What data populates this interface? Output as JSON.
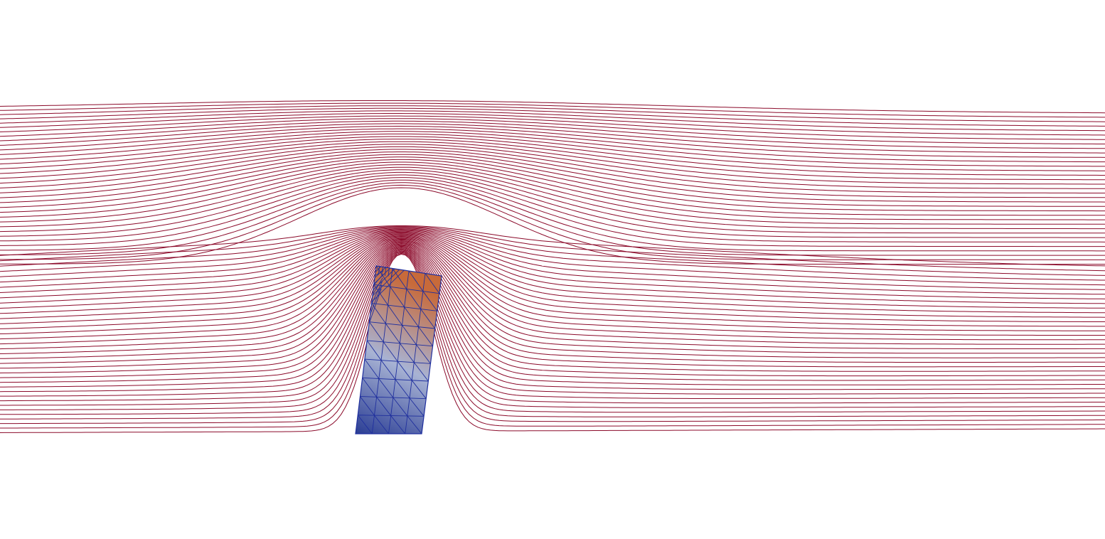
{
  "colors": {
    "background": "#ffffff",
    "streamline": "#8b0a2a",
    "mesh_edge": "#1f2f9e",
    "solid_low": "#2a3d94",
    "solid_mid": "#a8b3d4",
    "solid_high": "#c86a3a"
  },
  "scene": {
    "streamline_count": 72,
    "solid_mesh_columns": 4,
    "solid_mesh_rows": 9,
    "colormap": "blue-to-orange"
  }
}
